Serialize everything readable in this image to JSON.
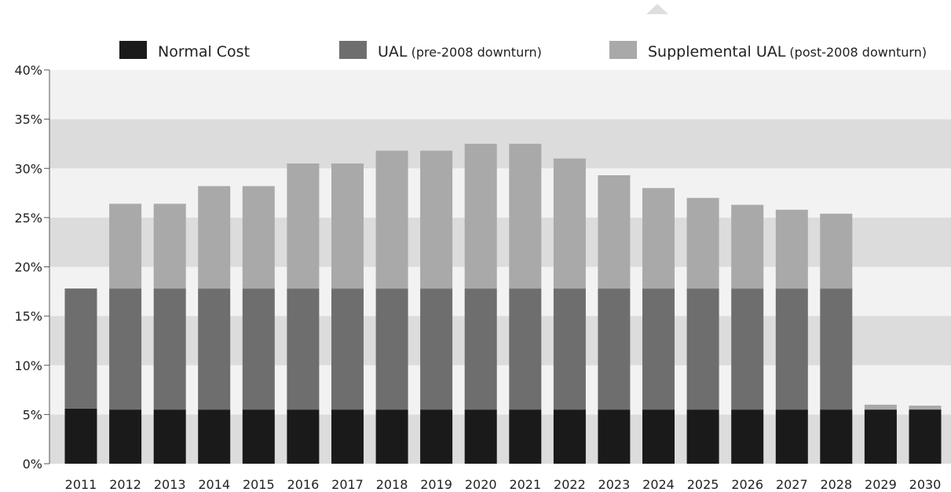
{
  "chart_data": {
    "type": "bar",
    "stacked": true,
    "categories": [
      "2011",
      "2012",
      "2013",
      "2014",
      "2015",
      "2016",
      "2017",
      "2018",
      "2019",
      "2020",
      "2021",
      "2022",
      "2023",
      "2024",
      "2025",
      "2026",
      "2027",
      "2028",
      "2029",
      "2030"
    ],
    "series": [
      {
        "name": "Normal Cost",
        "color": "#1a1a1a",
        "values": [
          5.6,
          5.5,
          5.5,
          5.5,
          5.5,
          5.5,
          5.5,
          5.5,
          5.5,
          5.5,
          5.5,
          5.5,
          5.5,
          5.5,
          5.5,
          5.5,
          5.5,
          5.5,
          5.5,
          5.5
        ]
      },
      {
        "name": "UAL",
        "name_suffix": " (pre-2008 downturn)",
        "color": "#6e6e6e",
        "values": [
          12.2,
          12.3,
          12.3,
          12.3,
          12.3,
          12.3,
          12.3,
          12.3,
          12.3,
          12.3,
          12.3,
          12.3,
          12.3,
          12.3,
          12.3,
          12.3,
          12.3,
          12.3,
          0,
          0
        ]
      },
      {
        "name": "Supplemental UAL",
        "name_suffix": " (post-2008 downturn)",
        "color": "#a9a9a9",
        "values": [
          0,
          8.6,
          8.6,
          10.4,
          10.4,
          12.7,
          12.7,
          14.0,
          14.0,
          14.7,
          14.7,
          13.2,
          11.5,
          10.2,
          9.2,
          8.5,
          8.0,
          7.6,
          0.5,
          0.4
        ]
      }
    ],
    "y_ticks": [
      "0%",
      "5%",
      "10%",
      "15%",
      "20%",
      "25%",
      "30%",
      "35%",
      "40%"
    ],
    "ylim": [
      0,
      40
    ],
    "grid": "alternating horizontal bands",
    "band_colors": [
      "#dcdcdc",
      "#f2f2f2"
    ],
    "legend_position": "top"
  }
}
